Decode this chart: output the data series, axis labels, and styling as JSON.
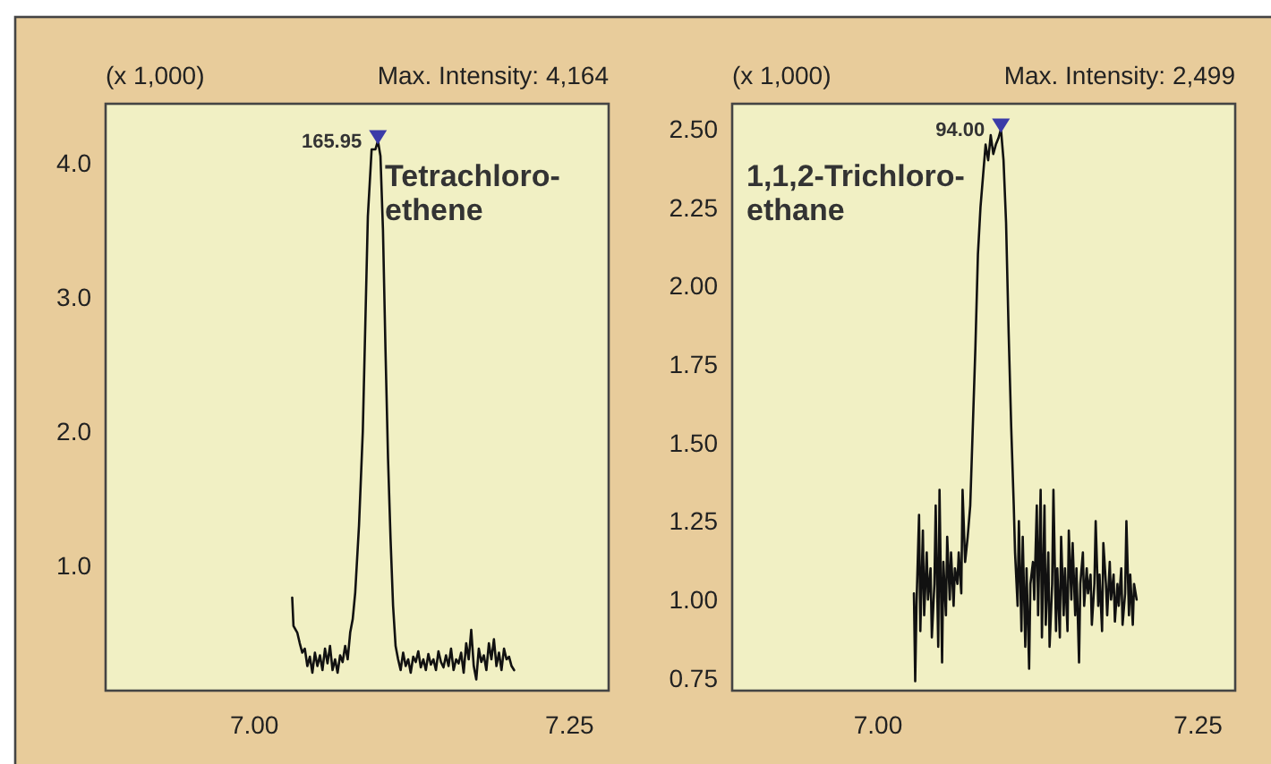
{
  "chart_data": [
    {
      "type": "line",
      "xlim": [
        6.882,
        7.281
      ],
      "ylim": [
        0.067,
        4.44
      ],
      "xticks": [
        {
          "value": 7.0,
          "label": "7.00"
        },
        7.25
      ],
      "yticks": [
        {
          "value": 1,
          "label": "1.0"
        },
        {
          "value": 2,
          "label": "2.0"
        },
        {
          "value": 3,
          "label": "3.0"
        },
        {
          "value": 4,
          "label": "4.0"
        }
      ],
      "grid": false,
      "line_style": "solid",
      "annotations": [
        "(x 1,000)",
        "Max. Intensity: 4,164",
        {
          "text": "165.95",
          "x": 7.098,
          "y": 4.164
        },
        "Tetrachloro-\nethene"
      ],
      "series": [
        {
          "color": "#111111",
          "x": [
            7.03,
            7.031,
            7.034,
            7.036,
            7.038,
            7.04,
            7.042,
            7.044,
            7.046,
            7.048,
            7.05,
            7.052,
            7.054,
            7.056,
            7.058,
            7.06,
            7.062,
            7.064,
            7.066,
            7.068,
            7.07,
            7.072,
            7.074,
            7.076,
            7.078,
            7.08,
            7.083,
            7.086,
            7.088,
            7.09,
            7.093,
            7.096,
            7.098,
            7.1,
            7.102,
            7.104,
            7.106,
            7.108,
            7.11,
            7.112,
            7.114,
            7.116,
            7.118,
            7.12,
            7.122,
            7.124,
            7.126,
            7.128,
            7.13,
            7.132,
            7.134,
            7.136,
            7.138,
            7.14,
            7.142,
            7.144,
            7.146,
            7.148,
            7.15,
            7.152,
            7.154,
            7.156,
            7.158,
            7.16,
            7.162,
            7.164,
            7.166,
            7.168,
            7.17,
            7.172,
            7.174,
            7.176,
            7.178,
            7.18,
            7.182,
            7.184,
            7.186,
            7.188,
            7.19,
            7.192,
            7.194,
            7.196,
            7.198,
            7.2,
            7.202,
            7.204,
            7.206
          ],
          "values": [
            0.76,
            0.55,
            0.5,
            0.42,
            0.35,
            0.38,
            0.25,
            0.32,
            0.2,
            0.35,
            0.25,
            0.33,
            0.22,
            0.38,
            0.27,
            0.4,
            0.22,
            0.3,
            0.2,
            0.33,
            0.28,
            0.4,
            0.3,
            0.5,
            0.6,
            0.8,
            1.3,
            2.0,
            2.8,
            3.6,
            4.1,
            4.1,
            4.164,
            4.05,
            3.5,
            2.6,
            1.8,
            1.2,
            0.7,
            0.4,
            0.3,
            0.22,
            0.35,
            0.25,
            0.3,
            0.2,
            0.32,
            0.28,
            0.36,
            0.24,
            0.3,
            0.22,
            0.34,
            0.26,
            0.3,
            0.22,
            0.36,
            0.28,
            0.24,
            0.33,
            0.25,
            0.38,
            0.22,
            0.3,
            0.27,
            0.35,
            0.2,
            0.42,
            0.3,
            0.52,
            0.25,
            0.15,
            0.38,
            0.28,
            0.33,
            0.22,
            0.42,
            0.3,
            0.45,
            0.25,
            0.35,
            0.22,
            0.38,
            0.3,
            0.32,
            0.25,
            0.22
          ]
        }
      ]
    },
    {
      "type": "line",
      "xlim": [
        6.886,
        7.279
      ],
      "ylim": [
        0.71,
        2.58
      ],
      "xticks": [
        {
          "value": 7.0,
          "label": "7.00"
        },
        7.25
      ],
      "yticks": [
        0.75,
        {
          "value": 1,
          "label": "1.00"
        },
        1.25,
        {
          "value": 1.5,
          "label": "1.50"
        },
        1.75,
        {
          "value": 2,
          "label": "2.00"
        },
        2.25,
        {
          "value": 2.5,
          "label": "2.50"
        }
      ],
      "grid": false,
      "line_style": "solid",
      "annotations": [
        "(x 1,000)",
        "Max. Intensity: 2,499",
        {
          "text": "94.00",
          "x": 7.096,
          "y": 2.499
        },
        "1,1,2-Trichloro-\nethane"
      ],
      "series": [
        {
          "color": "#111111",
          "x": [
            7.028,
            7.029,
            7.03,
            7.032,
            7.033,
            7.035,
            7.036,
            7.038,
            7.039,
            7.041,
            7.042,
            7.044,
            7.045,
            7.047,
            7.048,
            7.05,
            7.051,
            7.053,
            7.054,
            7.056,
            7.057,
            7.059,
            7.06,
            7.062,
            7.063,
            7.065,
            7.066,
            7.068,
            7.07,
            7.072,
            7.074,
            7.076,
            7.078,
            7.08,
            7.082,
            7.084,
            7.086,
            7.088,
            7.09,
            7.092,
            7.094,
            7.096,
            7.098,
            7.1,
            7.102,
            7.104,
            7.106,
            7.107,
            7.109,
            7.11,
            7.112,
            7.113,
            7.115,
            7.116,
            7.118,
            7.119,
            7.121,
            7.122,
            7.124,
            7.125,
            7.127,
            7.128,
            7.13,
            7.131,
            7.133,
            7.134,
            7.136,
            7.137,
            7.139,
            7.14,
            7.142,
            7.143,
            7.145,
            7.146,
            7.148,
            7.149,
            7.151,
            7.152,
            7.154,
            7.155,
            7.157,
            7.158,
            7.16,
            7.161,
            7.163,
            7.164,
            7.166,
            7.167,
            7.169,
            7.17,
            7.172,
            7.173,
            7.175,
            7.176,
            7.178,
            7.179,
            7.181,
            7.182,
            7.184,
            7.185,
            7.187,
            7.188,
            7.19,
            7.191,
            7.193,
            7.194,
            7.196,
            7.197,
            7.199,
            7.2,
            7.202
          ],
          "values": [
            1.02,
            0.74,
            0.98,
            1.27,
            0.9,
            1.22,
            0.95,
            1.15,
            1.0,
            1.1,
            0.88,
            1.05,
            1.3,
            0.85,
            1.35,
            0.8,
            1.12,
            0.95,
            1.2,
            1.0,
            1.15,
            0.98,
            1.1,
            1.05,
            1.15,
            1.02,
            1.35,
            1.12,
            1.2,
            1.3,
            1.55,
            1.8,
            2.1,
            2.25,
            2.35,
            2.45,
            2.4,
            2.48,
            2.42,
            2.45,
            2.47,
            2.499,
            2.4,
            2.2,
            1.85,
            1.55,
            1.3,
            1.15,
            0.98,
            1.25,
            0.9,
            1.2,
            0.85,
            1.1,
            0.78,
            1.05,
            1.12,
            1.0,
            1.3,
            0.95,
            1.35,
            0.88,
            1.3,
            0.92,
            1.15,
            0.85,
            1.05,
            1.35,
            0.9,
            1.1,
            0.88,
            1.2,
            0.95,
            1.1,
            0.9,
            1.22,
            1.0,
            1.18,
            0.95,
            1.1,
            0.8,
            1.05,
            1.15,
            0.98,
            1.1,
            1.02,
            1.08,
            0.92,
            1.05,
            1.25,
            0.98,
            1.08,
            0.9,
            1.18,
            1.05,
            0.95,
            1.12,
            1.0,
            1.08,
            0.93,
            1.05,
            0.98,
            1.1,
            0.92,
            1.02,
            1.25,
            0.95,
            1.08,
            0.92,
            1.05,
            1.0
          ]
        }
      ]
    }
  ]
}
